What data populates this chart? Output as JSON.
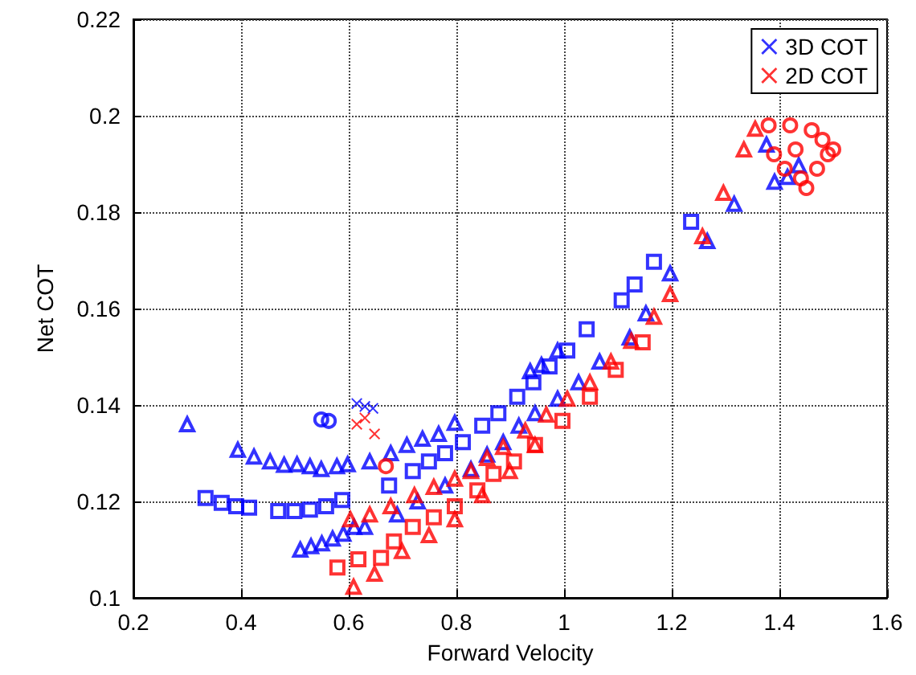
{
  "chart_data": {
    "type": "scatter",
    "xlabel": "Forward Velocity",
    "ylabel": "Net COT",
    "xlim": [
      0.2,
      1.6
    ],
    "ylim": [
      0.1,
      0.22
    ],
    "xticks": [
      0.2,
      0.4,
      0.6,
      0.8,
      1,
      1.2,
      1.4,
      1.6
    ],
    "yticks": [
      0.1,
      0.12,
      0.14,
      0.16,
      0.18,
      0.2,
      0.22
    ],
    "grid": true,
    "legend": "top right",
    "series": [
      {
        "name": "3D COT",
        "color": "#0000ff",
        "marker": "cross",
        "x": [
          0.615,
          0.63,
          0.645
        ],
        "values": [
          0.1403,
          0.1397,
          0.1393
        ]
      },
      {
        "name": "2D COT",
        "color": "#ff0000",
        "marker": "cross",
        "x": [
          0.615,
          0.63,
          0.648
        ],
        "values": [
          0.136,
          0.1373,
          0.134
        ]
      },
      {
        "color": "#0000ff",
        "marker": "triangle",
        "x": [
          0.3,
          0.394,
          0.424,
          0.454,
          0.48,
          0.504,
          0.528,
          0.549,
          0.578,
          0.598,
          0.639,
          0.678,
          0.708,
          0.737,
          0.767,
          0.797,
          0.937,
          0.958,
          0.988
        ],
        "values": [
          0.136,
          0.1307,
          0.1293,
          0.1283,
          0.1276,
          0.1277,
          0.1273,
          0.1267,
          0.1273,
          0.1277,
          0.1283,
          0.13,
          0.1317,
          0.133,
          0.134,
          0.1363,
          0.147,
          0.1483,
          0.1513
        ]
      },
      {
        "color": "#0000ff",
        "marker": "square",
        "x": [
          0.334,
          0.364,
          0.391,
          0.415,
          0.469,
          0.499,
          0.528,
          0.558,
          0.588,
          0.675,
          0.719,
          0.749,
          0.779,
          0.812,
          0.848,
          0.878,
          0.913,
          0.943,
          0.973,
          1.006,
          1.042,
          1.107,
          1.131,
          1.167,
          1.236
        ],
        "values": [
          0.1207,
          0.1197,
          0.119,
          0.1187,
          0.118,
          0.118,
          0.1183,
          0.119,
          0.1203,
          0.1233,
          0.1263,
          0.1283,
          0.13,
          0.1323,
          0.1357,
          0.1383,
          0.1417,
          0.1447,
          0.148,
          0.1513,
          0.1557,
          0.1617,
          0.165,
          0.1697,
          0.178
        ]
      },
      {
        "color": "#0000ff",
        "marker": "circle",
        "x": [
          0.549,
          0.563
        ],
        "values": [
          0.137,
          0.1367
        ]
      },
      {
        "color": "#0000ff",
        "marker": "triangle",
        "x": [
          0.51,
          0.53,
          0.55,
          0.57,
          0.59,
          0.61,
          0.63,
          0.69,
          0.728,
          0.779,
          0.827,
          0.857,
          0.887,
          0.916,
          0.946,
          0.988,
          1.027,
          1.066,
          1.122,
          1.152,
          1.197,
          1.266,
          1.316,
          1.376,
          1.391,
          1.415,
          1.436
        ],
        "values": [
          0.11,
          0.1107,
          0.1113,
          0.1123,
          0.1133,
          0.1147,
          0.1147,
          0.1173,
          0.12,
          0.1233,
          0.1267,
          0.1297,
          0.1323,
          0.1357,
          0.1383,
          0.1413,
          0.1447,
          0.149,
          0.154,
          0.159,
          0.1673,
          0.174,
          0.1817,
          0.194,
          0.1863,
          0.1873,
          0.1897
        ]
      },
      {
        "color": "#ff0000",
        "marker": "triangle",
        "x": [
          0.603,
          0.639,
          0.678,
          0.722,
          0.758,
          0.797,
          0.827,
          0.857,
          0.887,
          0.928,
          0.967,
          1.006,
          1.048,
          1.087,
          1.125,
          1.167,
          1.197,
          1.257,
          1.296,
          1.334,
          1.355
        ],
        "values": [
          0.1163,
          0.1173,
          0.119,
          0.1213,
          0.123,
          0.1247,
          0.1263,
          0.129,
          0.1313,
          0.1347,
          0.138,
          0.1413,
          0.1447,
          0.149,
          0.1533,
          0.1583,
          0.163,
          0.175,
          0.184,
          0.193,
          0.1973
        ]
      },
      {
        "color": "#ff0000",
        "marker": "square",
        "x": [
          0.579,
          0.618,
          0.66,
          0.684,
          0.719,
          0.758,
          0.797,
          0.839,
          0.869,
          0.907,
          0.946,
          0.997,
          1.048,
          1.096,
          1.146
        ],
        "values": [
          0.1063,
          0.108,
          0.1083,
          0.1117,
          0.1147,
          0.1167,
          0.119,
          0.1223,
          0.1257,
          0.1283,
          0.1317,
          0.1367,
          0.1417,
          0.1473,
          0.153
        ]
      },
      {
        "color": "#ff0000",
        "marker": "triangle",
        "x": [
          0.609,
          0.648,
          0.699,
          0.749,
          0.797,
          0.848,
          0.899,
          0.946
        ],
        "values": [
          0.1023,
          0.105,
          0.1097,
          0.113,
          0.1163,
          0.1213,
          0.1263,
          0.1317
        ]
      },
      {
        "color": "#ff0000",
        "marker": "circle",
        "x": [
          0.669,
          1.38,
          1.42,
          1.46,
          1.48,
          1.49,
          1.47,
          1.44,
          1.41,
          1.39,
          1.43,
          1.5,
          1.45
        ],
        "values": [
          0.1273,
          0.198,
          0.198,
          0.197,
          0.195,
          0.192,
          0.189,
          0.187,
          0.189,
          0.192,
          0.193,
          0.193,
          0.185
        ]
      }
    ]
  }
}
